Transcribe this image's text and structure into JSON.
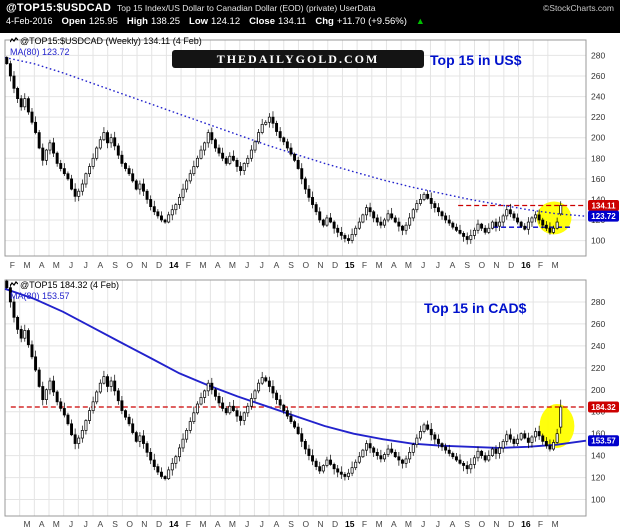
{
  "header": {
    "symbol": "@TOP15:$USDCAD",
    "description": "Top 15 Index/US Dollar to Canadian Dollar (EOD) (private) UserData",
    "copyright": "©StockCharts.com",
    "date": "4-Feb-2016",
    "quote": [
      {
        "label": "Open",
        "value": "125.95"
      },
      {
        "label": "High",
        "value": "138.25"
      },
      {
        "label": "Low",
        "value": "124.12"
      },
      {
        "label": "Close",
        "value": "134.11"
      },
      {
        "label": "Chg",
        "value": "+11.70 (+9.56%)"
      }
    ],
    "chg_arrow": "▲"
  },
  "watermark": "TheDailyGold.com",
  "colors": {
    "grid": "#e4e4e4",
    "border": "#999999",
    "candle": "#000000",
    "ma": "#2222cc",
    "red_line": "#cc0000",
    "blue_line": "#0000cc",
    "highlight": "#ffff00",
    "annotation": "#0011cc",
    "arrow_up": "#00c000"
  },
  "chart_data": [
    {
      "type": "candlestick",
      "timeframe": "Weekly",
      "title": "@TOP15:$USDCAD (Weekly) 134.11 (4 Feb)",
      "ma_label": "MA(80) 123.72",
      "ma_value": 123.72,
      "annotation": "Top 15 in US$",
      "ylim": [
        85,
        295
      ],
      "yticks": [
        100,
        120,
        140,
        160,
        180,
        200,
        220,
        240,
        260,
        280
      ],
      "x_labels": [
        "F",
        "M",
        "A",
        "M",
        "J",
        "J",
        "A",
        "S",
        "O",
        "N",
        "D",
        "14",
        "F",
        "M",
        "A",
        "M",
        "J",
        "J",
        "A",
        "S",
        "O",
        "N",
        "D",
        "15",
        "F",
        "M",
        "A",
        "M",
        "J",
        "J",
        "A",
        "S",
        "O",
        "N",
        "D",
        "16",
        "F",
        "M"
      ],
      "x_label_offset_months": 0,
      "closes": [
        272,
        260,
        248,
        238,
        230,
        238,
        225,
        215,
        205,
        190,
        178,
        188,
        195,
        185,
        175,
        170,
        165,
        160,
        150,
        143,
        148,
        155,
        165,
        172,
        180,
        190,
        198,
        205,
        195,
        200,
        192,
        183,
        175,
        170,
        165,
        158,
        150,
        155,
        148,
        140,
        133,
        128,
        124,
        120,
        118,
        125,
        130,
        135,
        142,
        150,
        158,
        165,
        172,
        180,
        188,
        195,
        205,
        198,
        190,
        185,
        180,
        175,
        182,
        178,
        172,
        168,
        175,
        180,
        188,
        196,
        205,
        213,
        215,
        220,
        214,
        206,
        200,
        196,
        190,
        184,
        178,
        170,
        160,
        150,
        142,
        135,
        128,
        120,
        115,
        122,
        118,
        112,
        108,
        105,
        102,
        100,
        106,
        112,
        118,
        125,
        132,
        128,
        122,
        118,
        115,
        120,
        126,
        122,
        118,
        114,
        110,
        115,
        122,
        130,
        136,
        140,
        145,
        141,
        136,
        132,
        128,
        124,
        120,
        117,
        113,
        110,
        107,
        104,
        101,
        105,
        110,
        116,
        112,
        108,
        112,
        118,
        114,
        118,
        124,
        130,
        126,
        122,
        118,
        114,
        111,
        118,
        122,
        125,
        120,
        115,
        112,
        108,
        112,
        118,
        134.11
      ],
      "last_bar": {
        "open": 125.95,
        "high": 138.25,
        "low": 124.12,
        "close": 134.11
      },
      "ma_style": "dotted",
      "ma_points": [
        [
          0,
          278
        ],
        [
          0.05,
          272
        ],
        [
          0.1,
          263
        ],
        [
          0.15,
          253
        ],
        [
          0.2,
          243
        ],
        [
          0.25,
          233
        ],
        [
          0.3,
          223
        ],
        [
          0.35,
          213
        ],
        [
          0.4,
          203
        ],
        [
          0.45,
          193
        ],
        [
          0.5,
          184
        ],
        [
          0.55,
          175
        ],
        [
          0.6,
          167
        ],
        [
          0.65,
          159
        ],
        [
          0.7,
          152
        ],
        [
          0.75,
          146
        ],
        [
          0.8,
          140
        ],
        [
          0.85,
          135
        ],
        [
          0.9,
          130
        ],
        [
          0.95,
          126
        ],
        [
          1,
          123.72
        ]
      ],
      "ref_lines": [
        {
          "value": 134.11,
          "color": "#cc0000",
          "style": "dashed",
          "x_start": 0.78,
          "x_end": 1.0
        },
        {
          "value": 113.0,
          "color": "#0000cc",
          "style": "dashed",
          "x_start": 0.84,
          "x_end": 0.975
        }
      ],
      "badges": [
        {
          "value": 134.11,
          "text": "134.11",
          "color": "#cc0000"
        },
        {
          "value": 123.72,
          "text": "123.72",
          "color": "#0000cc"
        }
      ],
      "highlight": {
        "x_frac": 0.945,
        "value": 122,
        "rx_frac": 0.03,
        "ry_units": 16
      }
    },
    {
      "type": "candlestick",
      "timeframe": "Weekly",
      "title": "@TOP15 184.32 (4 Feb)",
      "ma_label": "MA(80) 153.57",
      "ma_value": 153.57,
      "annotation": "Top 15 in CAD$",
      "ylim": [
        85,
        300
      ],
      "yticks": [
        100,
        120,
        140,
        160,
        180,
        200,
        220,
        240,
        260,
        280
      ],
      "x_labels": [
        "M",
        "A",
        "M",
        "J",
        "J",
        "A",
        "S",
        "O",
        "N",
        "D",
        "14",
        "F",
        "M",
        "A",
        "M",
        "J",
        "J",
        "A",
        "S",
        "O",
        "N",
        "D",
        "15",
        "F",
        "M",
        "A",
        "M",
        "J",
        "J",
        "A",
        "S",
        "O",
        "N",
        "D",
        "16",
        "F",
        "M"
      ],
      "x_label_offset_months": 1,
      "closes": [
        293,
        280,
        266,
        255,
        247,
        254,
        241,
        230,
        218,
        203,
        191,
        200,
        208,
        198,
        189,
        183,
        177,
        169,
        159,
        151,
        156,
        163,
        172,
        181,
        189,
        198,
        206,
        212,
        203,
        208,
        199,
        190,
        181,
        175,
        169,
        161,
        153,
        158,
        151,
        143,
        136,
        130,
        125,
        121,
        119,
        127,
        133,
        139,
        147,
        155,
        163,
        171,
        179,
        187,
        193,
        199,
        206,
        200,
        194,
        188,
        183,
        179,
        185,
        181,
        176,
        172,
        179,
        185,
        192,
        199,
        206,
        211,
        208,
        203,
        197,
        191,
        186,
        181,
        176,
        171,
        166,
        160,
        153,
        146,
        140,
        135,
        130,
        126,
        131,
        136,
        132,
        128,
        125,
        123,
        121,
        124,
        129,
        134,
        139,
        145,
        151,
        147,
        143,
        140,
        137,
        141,
        146,
        143,
        139,
        136,
        133,
        137,
        143,
        150,
        156,
        162,
        168,
        164,
        159,
        155,
        151,
        148,
        145,
        142,
        139,
        136,
        133,
        131,
        128,
        132,
        138,
        144,
        140,
        136,
        140,
        146,
        142,
        147,
        153,
        159,
        155,
        151,
        155,
        160,
        156,
        152,
        157,
        162,
        158,
        153,
        149,
        146,
        152,
        160,
        184.32
      ],
      "last_bar": {
        "open": 166,
        "high": 191,
        "low": 160,
        "close": 184.32
      },
      "ma_style": "solid",
      "ma_points": [
        [
          0,
          292
        ],
        [
          0.05,
          283
        ],
        [
          0.1,
          271
        ],
        [
          0.15,
          257
        ],
        [
          0.2,
          243
        ],
        [
          0.25,
          229
        ],
        [
          0.3,
          215
        ],
        [
          0.35,
          204
        ],
        [
          0.4,
          194
        ],
        [
          0.45,
          185
        ],
        [
          0.5,
          176
        ],
        [
          0.55,
          167
        ],
        [
          0.6,
          160
        ],
        [
          0.65,
          155
        ],
        [
          0.7,
          151
        ],
        [
          0.75,
          149
        ],
        [
          0.8,
          148
        ],
        [
          0.85,
          147
        ],
        [
          0.9,
          148
        ],
        [
          0.95,
          150
        ],
        [
          1,
          153.57
        ]
      ],
      "ref_lines": [
        {
          "value": 184.32,
          "color": "#cc0000",
          "style": "dashed",
          "x_start": 0.01,
          "x_end": 1.0
        }
      ],
      "badges": [
        {
          "value": 184.32,
          "text": "184.32",
          "color": "#cc0000"
        },
        {
          "value": 153.57,
          "text": "153.57",
          "color": "#0000cc"
        }
      ],
      "highlight": {
        "x_frac": 0.95,
        "value": 167,
        "rx_frac": 0.03,
        "ry_units": 20
      }
    }
  ]
}
